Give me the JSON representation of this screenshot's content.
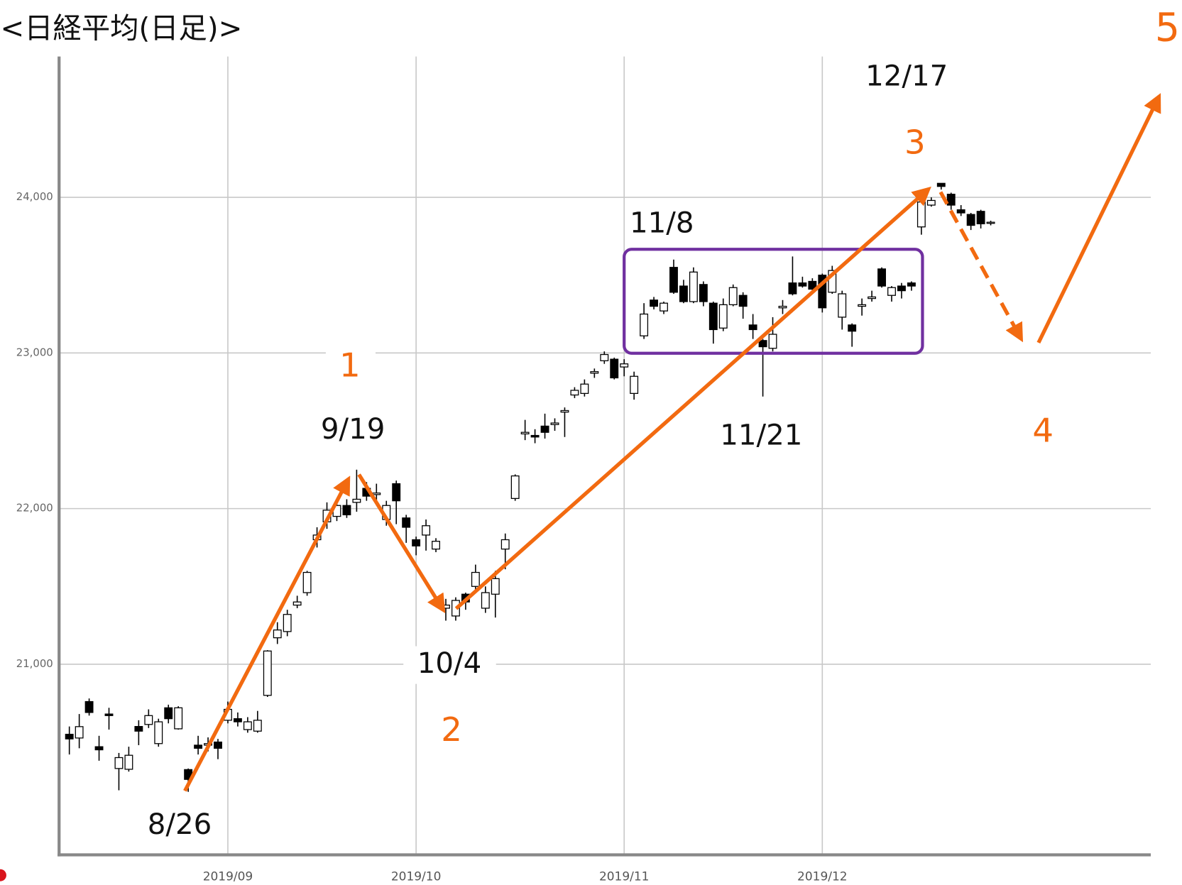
{
  "chart_data": {
    "type": "candlestick",
    "title": "<日経平均(日足)>",
    "categories": [
      null,
      null,
      null,
      null,
      null,
      null,
      null,
      null,
      null,
      null,
      null,
      null,
      null,
      null,
      null,
      null,
      "2019/09",
      null,
      null,
      null,
      null,
      null,
      null,
      null,
      null,
      null,
      null,
      null,
      null,
      null,
      null,
      null,
      null,
      null,
      null,
      "2019/10",
      null,
      null,
      null,
      null,
      null,
      null,
      null,
      null,
      null,
      null,
      null,
      null,
      null,
      null,
      null,
      null,
      null,
      null,
      null,
      null,
      "2019/11",
      null,
      null,
      null,
      null,
      null,
      null,
      null,
      null,
      null,
      null,
      null,
      null,
      null,
      null,
      null,
      null,
      null,
      null,
      null,
      "2019/12",
      null,
      null,
      null,
      null,
      null,
      null,
      null,
      null,
      null,
      null,
      null,
      null,
      null,
      null,
      null,
      null,
      null
    ],
    "open": [
      20550,
      20526,
      20760,
      20470,
      20680,
      20330,
      20325,
      20600,
      20613,
      20490,
      20720,
      20585,
      20323,
      20480,
      20480,
      20500,
      20640,
      20650,
      20580,
      20570,
      20800,
      21170,
      21210,
      21380,
      21460,
      21800,
      21915,
      21950,
      22020,
      22040,
      22130,
      22090,
      21930,
      22160,
      21940,
      21800,
      21830,
      21740,
      21360,
      21310,
      21450,
      21500,
      21360,
      21450,
      21740,
      22065,
      22480,
      22470,
      22530,
      22540,
      22620,
      22730,
      22740,
      22870,
      22950,
      22960,
      22910,
      22740,
      23110,
      23340,
      23270,
      23550,
      23430,
      23330,
      23440,
      23320,
      23160,
      23310,
      23370,
      23180,
      23080,
      23030,
      23290,
      23450,
      23450,
      23460,
      23500,
      23390,
      23230,
      23180,
      23300,
      23350,
      23540,
      23370,
      23430,
      23450,
      23810,
      23950,
      24090,
      24020,
      23920,
      23890,
      23910,
      23840
    ],
    "high": [
      20600,
      20680,
      20780,
      20540,
      20720,
      20430,
      20470,
      20640,
      20710,
      20650,
      20740,
      20730,
      20330,
      20540,
      20530,
      20520,
      20760,
      20690,
      20660,
      20700,
      21090,
      21270,
      21350,
      21440,
      21600,
      21880,
      22040,
      22050,
      22060,
      22250,
      22170,
      22160,
      22050,
      22180,
      21960,
      21820,
      21930,
      21810,
      21420,
      21430,
      21460,
      21640,
      21500,
      21600,
      21840,
      22220,
      22570,
      22510,
      22610,
      22580,
      22650,
      22780,
      22830,
      22900,
      23010,
      22970,
      22960,
      22880,
      23320,
      23360,
      23330,
      23600,
      23470,
      23550,
      23460,
      23330,
      23350,
      23440,
      23390,
      23250,
      23090,
      23230,
      23340,
      23620,
      23490,
      23480,
      23510,
      23560,
      23400,
      23190,
      23350,
      23400,
      23550,
      23430,
      23450,
      23460,
      24000,
      24000,
      24090,
      24030,
      23950,
      23900,
      23920,
      23850
    ],
    "low": [
      20420,
      20460,
      20670,
      20380,
      20580,
      20190,
      20310,
      20480,
      20590,
      20470,
      20620,
      20580,
      20180,
      20420,
      20440,
      20390,
      20620,
      20600,
      20560,
      20560,
      20790,
      21130,
      21180,
      21360,
      21440,
      21750,
      21870,
      21920,
      21940,
      21980,
      22050,
      22040,
      21890,
      21900,
      21780,
      21700,
      21730,
      21720,
      21280,
      21280,
      21350,
      21460,
      21330,
      21300,
      21610,
      22050,
      22440,
      22420,
      22450,
      22500,
      22460,
      22710,
      22720,
      22840,
      22930,
      22830,
      22850,
      22700,
      23090,
      23280,
      23250,
      23380,
      23320,
      23320,
      23300,
      23060,
      23140,
      23300,
      23220,
      23090,
      22720,
      23010,
      23250,
      23370,
      23420,
      23400,
      23260,
      23380,
      23150,
      23040,
      23240,
      23330,
      23420,
      23330,
      23350,
      23400,
      23760,
      23940,
      24050,
      23920,
      23880,
      23790,
      23800,
      23820
    ],
    "close": [
      20520,
      20599,
      20690,
      20450,
      20670,
      20400,
      20415,
      20570,
      20670,
      20630,
      20650,
      20720,
      20260,
      20460,
      20490,
      20460,
      20710,
      20630,
      20630,
      20640,
      21085,
      21220,
      21320,
      21400,
      21590,
      21830,
      21990,
      22020,
      21960,
      22060,
      22080,
      22100,
      22020,
      22050,
      21880,
      21760,
      21890,
      21790,
      21380,
      21410,
      21400,
      21590,
      21460,
      21550,
      21800,
      22210,
      22490,
      22460,
      22490,
      22550,
      22630,
      22760,
      22800,
      22880,
      22990,
      22840,
      22930,
      22850,
      23250,
      23300,
      23320,
      23390,
      23330,
      23520,
      23330,
      23150,
      23310,
      23420,
      23300,
      23150,
      23040,
      23120,
      23300,
      23380,
      23430,
      23410,
      23290,
      23530,
      23380,
      23140,
      23310,
      23360,
      23430,
      23420,
      23400,
      23430,
      23970,
      23980,
      24070,
      23950,
      23900,
      23820,
      23830,
      23840
    ],
    "up_color": "#ffffff",
    "down_color": "#000000",
    "ylim": [
      19775,
      24905
    ],
    "yticks": [
      {
        "value": 21000,
        "label": "21,000"
      },
      {
        "value": 22000,
        "label": "22,000"
      },
      {
        "value": 23000,
        "label": "23,000"
      },
      {
        "value": 24000,
        "label": "24,000"
      }
    ],
    "grid": true,
    "annotations": [
      "12/17",
      "3",
      "11/8",
      "1",
      "9/19",
      "11/21",
      "4",
      "10/4",
      "2",
      "8/26",
      "5"
    ]
  }
}
